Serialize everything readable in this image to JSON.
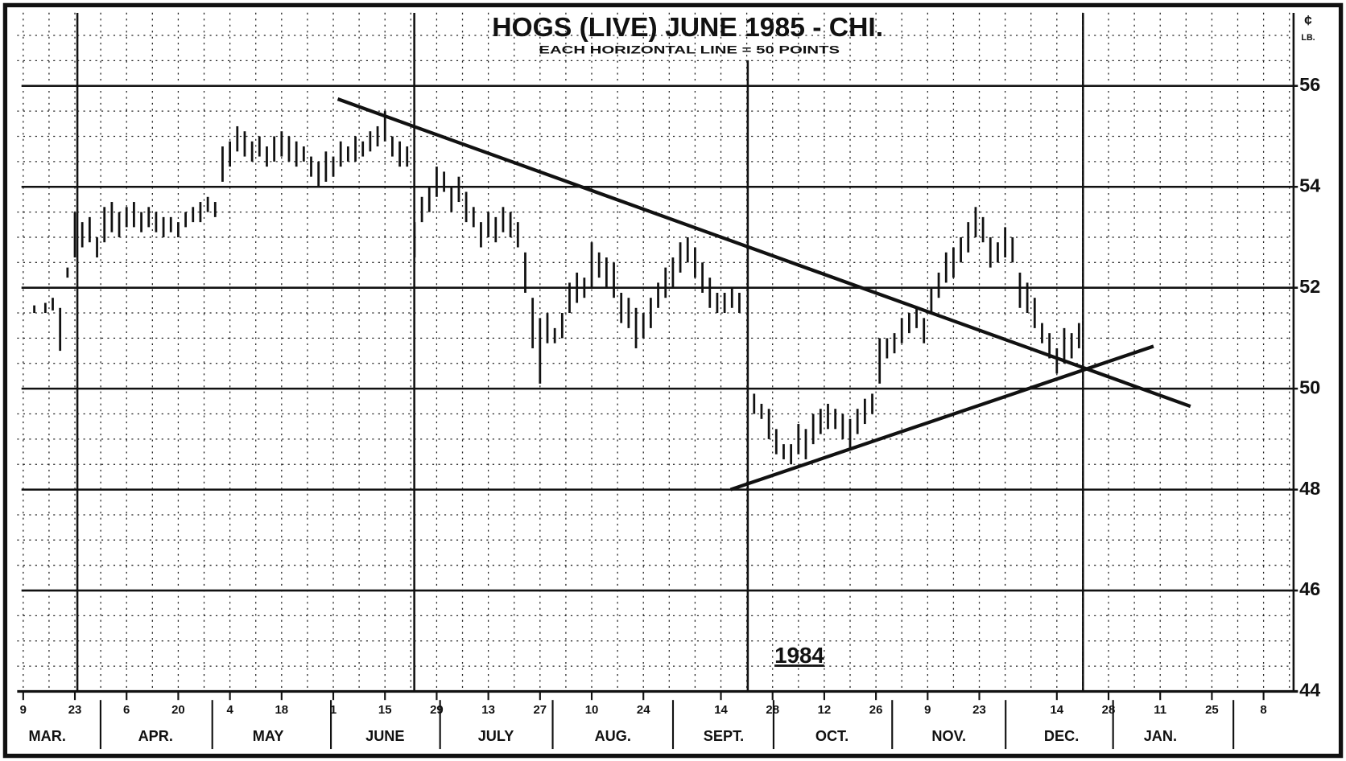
{
  "chart_data": {
    "type": "hilo",
    "title": "HOGS (LIVE)  JUNE 1985 - CHI.",
    "subtitle": "EACH HORIZONTAL LINE = 50 POINTS",
    "unit_top": "¢",
    "unit_bottom": "LB.",
    "year_label": "1984",
    "color": "#111111",
    "xlim": [
      0,
      344.5
    ],
    "ylim": [
      44,
      57.45
    ],
    "yticks": [
      44,
      46,
      48,
      50,
      52,
      54,
      56
    ],
    "minor_yticks": [
      44.5,
      45,
      45.5,
      46.5,
      47,
      47.5,
      48.5,
      49,
      49.5,
      50.5,
      51,
      51.5,
      52.5,
      53,
      53.5,
      54.5,
      55,
      55.5,
      56.5,
      57
    ],
    "minor_xticks": [
      0,
      7,
      14,
      21,
      28,
      35,
      42,
      49,
      56,
      63,
      70,
      77,
      84,
      91,
      98,
      105,
      112,
      119,
      126,
      133,
      140,
      147,
      154,
      161,
      168,
      175,
      182,
      189,
      196,
      203,
      210,
      217,
      224,
      231,
      238,
      245,
      252,
      259,
      266,
      273,
      280,
      287,
      294,
      301,
      308,
      315,
      322,
      329,
      336,
      343
    ],
    "xticks": [
      {
        "value": 0,
        "label": "9"
      },
      {
        "value": 14,
        "label": "23"
      },
      {
        "value": 28,
        "label": "6"
      },
      {
        "value": 42,
        "label": "20"
      },
      {
        "value": 56,
        "label": "4"
      },
      {
        "value": 70,
        "label": "18"
      },
      {
        "value": 84,
        "label": "1"
      },
      {
        "value": 98,
        "label": "15"
      },
      {
        "value": 112,
        "label": "29"
      },
      {
        "value": 126,
        "label": "13"
      },
      {
        "value": 140,
        "label": "27"
      },
      {
        "value": 154,
        "label": "10"
      },
      {
        "value": 168,
        "label": "24"
      },
      {
        "value": 189,
        "label": "14"
      },
      {
        "value": 203,
        "label": "28"
      },
      {
        "value": 217,
        "label": "12"
      },
      {
        "value": 231,
        "label": "26"
      },
      {
        "value": 245,
        "label": "9"
      },
      {
        "value": 259,
        "label": "23"
      },
      {
        "value": 280,
        "label": "14"
      },
      {
        "value": 294,
        "label": "28"
      },
      {
        "value": 308,
        "label": "11"
      },
      {
        "value": 322,
        "label": "25"
      },
      {
        "value": 336,
        "label": "8"
      }
    ],
    "categories": [
      "MAR.",
      "APR.",
      "MAY",
      "JUNE",
      "JULY",
      "AUG.",
      "SEPT.",
      "OCT.",
      "NOV.",
      "DEC.",
      "JAN."
    ],
    "x": [
      3,
      6,
      8,
      10,
      12,
      14,
      16,
      18,
      20,
      22,
      24,
      26,
      28,
      30,
      32,
      34,
      36,
      38,
      40,
      42,
      44,
      46,
      48,
      50,
      52,
      54,
      56,
      58,
      60,
      62,
      64,
      66,
      68,
      70,
      72,
      74,
      76,
      78,
      80,
      82,
      84,
      86,
      88,
      90,
      92,
      94,
      96,
      98,
      100,
      102,
      104,
      106,
      108,
      110,
      112,
      114,
      116,
      118,
      120,
      122,
      124,
      126,
      128,
      130,
      132,
      134,
      136,
      138,
      140,
      142,
      144,
      146,
      148,
      150,
      152,
      154,
      156,
      158,
      160,
      162,
      164,
      166,
      168,
      170,
      172,
      174,
      176,
      178,
      180,
      182,
      184,
      186,
      188,
      190,
      192,
      194,
      198,
      200,
      202,
      204,
      206,
      208,
      210,
      212,
      214,
      216,
      218,
      220,
      222,
      224,
      226,
      228,
      230,
      232,
      234,
      236,
      238,
      240,
      242,
      244,
      246,
      248,
      250,
      252,
      254,
      256,
      258,
      260,
      262,
      264,
      266,
      268,
      270,
      272,
      274,
      276,
      278,
      280,
      282,
      284,
      286
    ],
    "high": [
      51.65,
      51.7,
      51.8,
      51.6,
      52.4,
      53.5,
      53.3,
      53.4,
      53.0,
      53.6,
      53.7,
      53.5,
      53.6,
      53.7,
      53.5,
      53.6,
      53.5,
      53.4,
      53.4,
      53.3,
      53.5,
      53.6,
      53.7,
      53.8,
      53.7,
      54.8,
      54.9,
      55.2,
      55.1,
      54.9,
      55.0,
      54.8,
      55.0,
      55.1,
      55.0,
      54.9,
      54.8,
      54.6,
      54.5,
      54.7,
      54.6,
      54.9,
      54.8,
      55.0,
      54.9,
      55.1,
      55.2,
      55.5,
      55.0,
      54.9,
      54.8,
      53.3,
      53.8,
      54.0,
      54.4,
      54.3,
      54.0,
      54.2,
      53.9,
      53.6,
      53.3,
      53.5,
      53.4,
      53.6,
      53.5,
      53.3,
      52.7,
      51.8,
      51.4,
      51.5,
      51.2,
      51.5,
      52.1,
      52.3,
      52.2,
      52.9,
      52.7,
      52.6,
      52.5,
      51.9,
      51.8,
      51.6,
      51.5,
      51.8,
      52.1,
      52.4,
      52.6,
      52.9,
      53.0,
      52.8,
      52.5,
      52.2,
      51.9,
      51.9,
      52.0,
      51.9,
      49.9,
      49.7,
      49.6,
      49.2,
      48.9,
      48.9,
      49.3,
      49.2,
      49.5,
      49.6,
      49.7,
      49.6,
      49.5,
      49.4,
      49.6,
      49.8,
      49.9,
      51.0,
      51.0,
      51.1,
      51.4,
      51.5,
      51.6,
      51.4,
      52.0,
      52.3,
      52.7,
      52.8,
      53.0,
      53.3,
      53.6,
      53.4,
      53.0,
      52.9,
      53.2,
      53.0,
      52.3,
      52.1,
      51.8,
      51.3,
      51.1,
      50.8,
      51.2,
      51.1,
      51.3
    ],
    "low": [
      51.5,
      51.5,
      51.55,
      50.75,
      52.2,
      52.6,
      52.8,
      52.9,
      52.6,
      52.9,
      53.1,
      53.0,
      53.2,
      53.2,
      53.1,
      53.2,
      53.1,
      53.0,
      53.1,
      53.0,
      53.2,
      53.3,
      53.3,
      53.5,
      53.4,
      54.1,
      54.4,
      54.7,
      54.6,
      54.5,
      54.6,
      54.4,
      54.5,
      54.6,
      54.5,
      54.4,
      54.5,
      54.2,
      54.0,
      54.1,
      54.2,
      54.4,
      54.5,
      54.5,
      54.6,
      54.7,
      54.8,
      54.9,
      54.6,
      54.4,
      54.4,
      52.6,
      53.3,
      53.5,
      53.8,
      53.9,
      53.5,
      53.7,
      53.3,
      53.2,
      52.8,
      53.0,
      52.9,
      53.1,
      53.0,
      52.8,
      51.9,
      50.8,
      50.1,
      50.9,
      50.9,
      51.0,
      51.5,
      51.7,
      51.8,
      52.0,
      52.2,
      52.0,
      51.8,
      51.3,
      51.2,
      50.8,
      51.0,
      51.2,
      51.6,
      51.8,
      52.0,
      52.3,
      52.5,
      52.2,
      51.9,
      51.6,
      51.5,
      51.5,
      51.6,
      51.5,
      49.5,
      49.4,
      49.0,
      48.7,
      48.6,
      48.5,
      48.7,
      48.6,
      48.9,
      49.1,
      49.2,
      49.2,
      49.0,
      48.8,
      49.1,
      49.3,
      49.5,
      50.1,
      50.6,
      50.7,
      50.9,
      51.1,
      51.2,
      50.9,
      51.5,
      51.8,
      52.1,
      52.2,
      52.5,
      52.7,
      53.0,
      52.9,
      52.4,
      52.5,
      52.6,
      52.5,
      51.6,
      51.5,
      51.2,
      50.9,
      50.6,
      50.3,
      50.5,
      50.6,
      50.8
    ],
    "trendlines": [
      {
        "x": [
          85.2,
          316.2
        ],
        "y": [
          55.74,
          49.65
        ]
      },
      {
        "x": [
          191.6,
          306.2
        ],
        "y": [
          48.0,
          50.84
        ]
      }
    ]
  }
}
